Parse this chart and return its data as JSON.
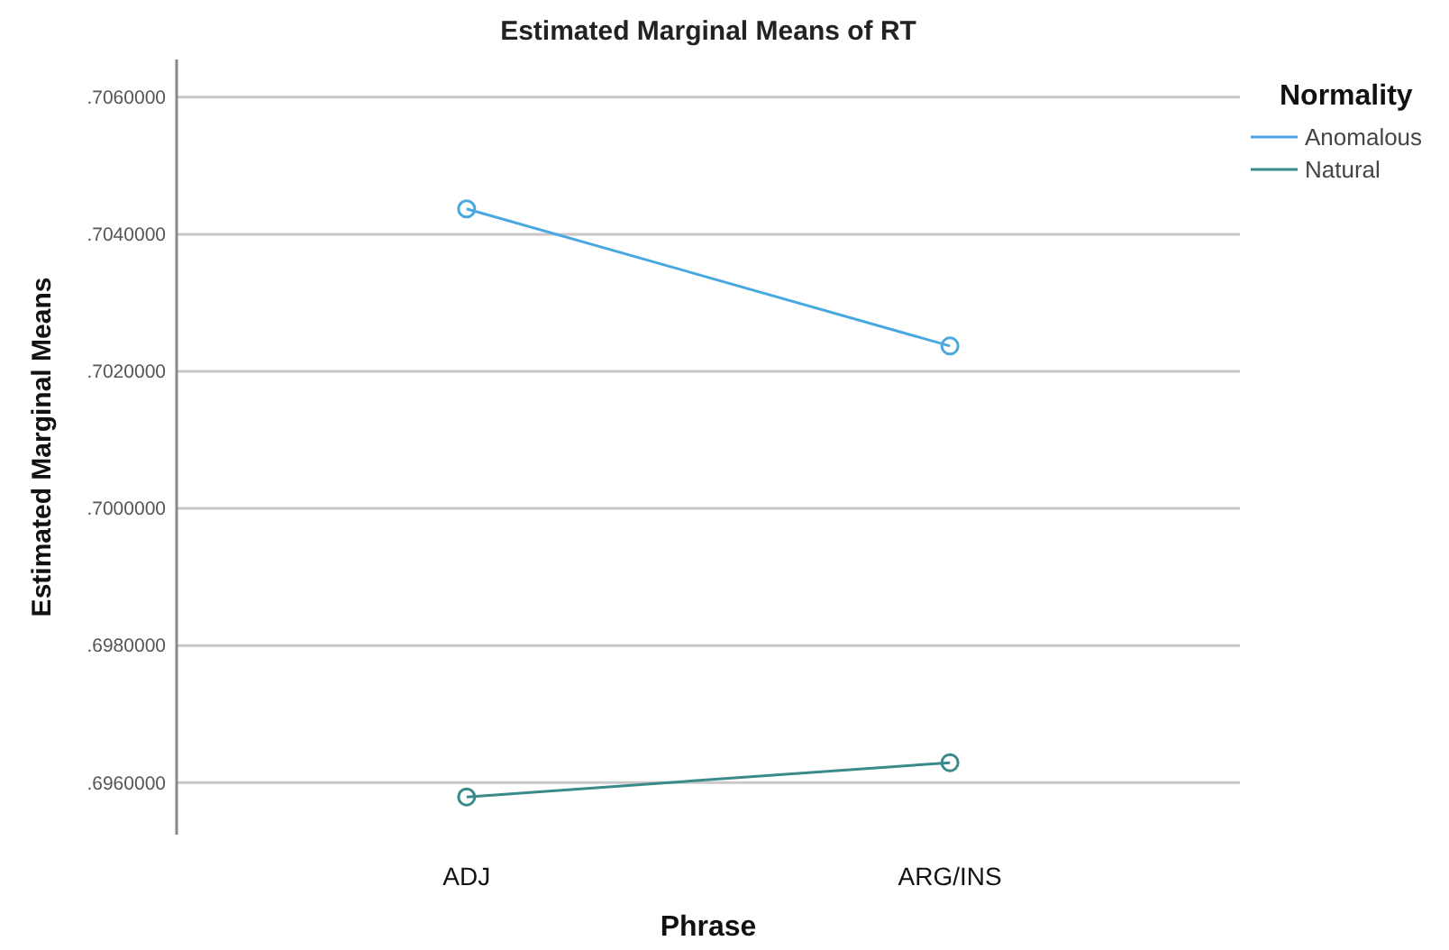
{
  "chart_data": {
    "type": "line",
    "title": "Estimated Marginal Means of RT",
    "xlabel": "Phrase",
    "ylabel": "Estimated Marginal Means",
    "legend_title": "Normality",
    "categories": [
      "ADJ",
      "ARG/INS"
    ],
    "series": [
      {
        "name": "Anomalous",
        "color": "#4aa8e0",
        "values": [
          0.70437,
          0.70237
        ]
      },
      {
        "name": "Natural",
        "color": "#3a8a8a",
        "values": [
          0.69579,
          0.69629
        ]
      }
    ],
    "ylim": [
      0.69524,
      0.70655
    ],
    "yticks": [
      {
        "value": 0.696,
        "label": ".6960000"
      },
      {
        "value": 0.698,
        "label": ".6980000"
      },
      {
        "value": 0.7,
        "label": ".7000000"
      },
      {
        "value": 0.702,
        "label": ".7020000"
      },
      {
        "value": 0.704,
        "label": ".7040000"
      },
      {
        "value": 0.706,
        "label": ".7060000"
      }
    ],
    "grid": "y",
    "legend": "top right",
    "marker": "circle",
    "line_style": "solid"
  }
}
